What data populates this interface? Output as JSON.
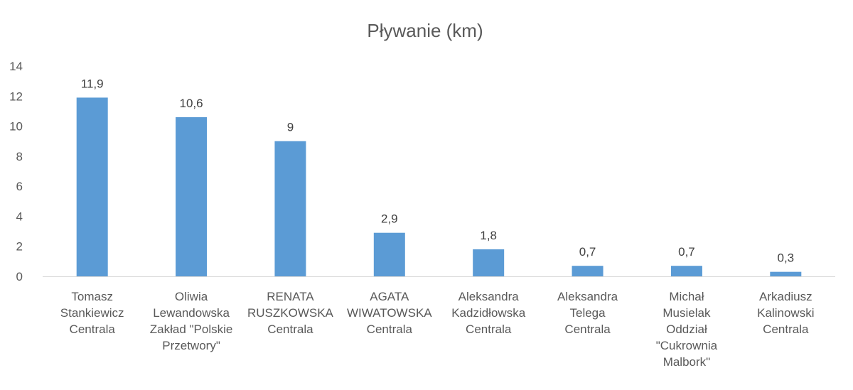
{
  "chart_data": {
    "type": "bar",
    "title": "Pływanie (km)",
    "xlabel": "",
    "ylabel": "",
    "ylim": [
      0,
      14
    ],
    "yticks": [
      0,
      2,
      4,
      6,
      8,
      10,
      12,
      14
    ],
    "grid": false,
    "legend": "none",
    "bar_color": "#5b9bd5",
    "categories": [
      [
        "Tomasz",
        "Stankiewicz",
        "Centrala"
      ],
      [
        "Oliwia",
        "Lewandowska",
        "Zakład \"Polskie",
        "Przetwory\""
      ],
      [
        "RENATA",
        "RUSZKOWSKA",
        "Centrala"
      ],
      [
        "AGATA",
        "WIWATOWSKA",
        "Centrala"
      ],
      [
        "Aleksandra",
        "Kadzidłowska",
        "Centrala"
      ],
      [
        "Aleksandra",
        "Telega",
        "Centrala"
      ],
      [
        "Michał",
        "Musielak",
        "Oddział",
        "\"Cukrownia",
        "Malbork\""
      ],
      [
        "Arkadiusz",
        "Kalinowski",
        "Centrala"
      ]
    ],
    "values": [
      11.9,
      10.6,
      9,
      2.9,
      1.8,
      0.7,
      0.7,
      0.3
    ],
    "data_labels": [
      "11,9",
      "10,6",
      "9",
      "2,9",
      "1,8",
      "0,7",
      "0,7",
      "0,3"
    ]
  }
}
